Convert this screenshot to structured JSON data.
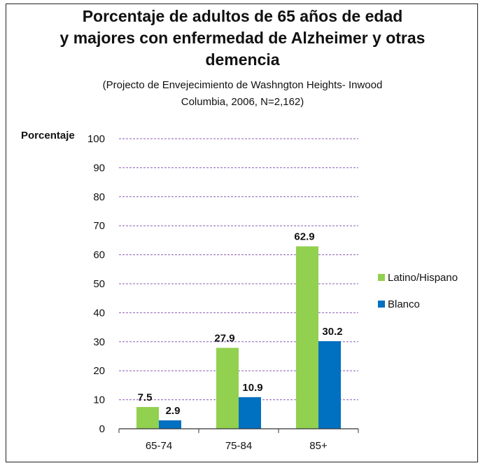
{
  "chart_data": {
    "type": "bar",
    "title_lines": [
      "Porcentaje de adultos de 65 años de edad",
      "y majores con enfermedad de Alzheimer  y otras",
      "demencia"
    ],
    "subtitle_lines": [
      "(Projecto de Envejecimiento de Washngton Heights- Inwood",
      "Columbia, 2006,  N=2,162)"
    ],
    "ylabel": "Porcentaje",
    "xlabel": "",
    "categories": [
      "65-74",
      "75-84",
      "85+"
    ],
    "ylim": [
      0,
      100
    ],
    "yticks": [
      0,
      10,
      20,
      30,
      40,
      50,
      60,
      70,
      80,
      90,
      100
    ],
    "grid": true,
    "legend_position": "right",
    "series": [
      {
        "name": "Latino/Hispano",
        "values": [
          7.5,
          27.9,
          62.9
        ],
        "labels": [
          "7.5",
          "27.9",
          "62.9"
        ],
        "color": "#92d050"
      },
      {
        "name": "Blanco",
        "values": [
          2.9,
          10.9,
          30.2
        ],
        "labels": [
          "2.9",
          "10.9",
          "30.2"
        ],
        "color": "#0070c0"
      }
    ],
    "grid_color": "#8e5bb5"
  }
}
